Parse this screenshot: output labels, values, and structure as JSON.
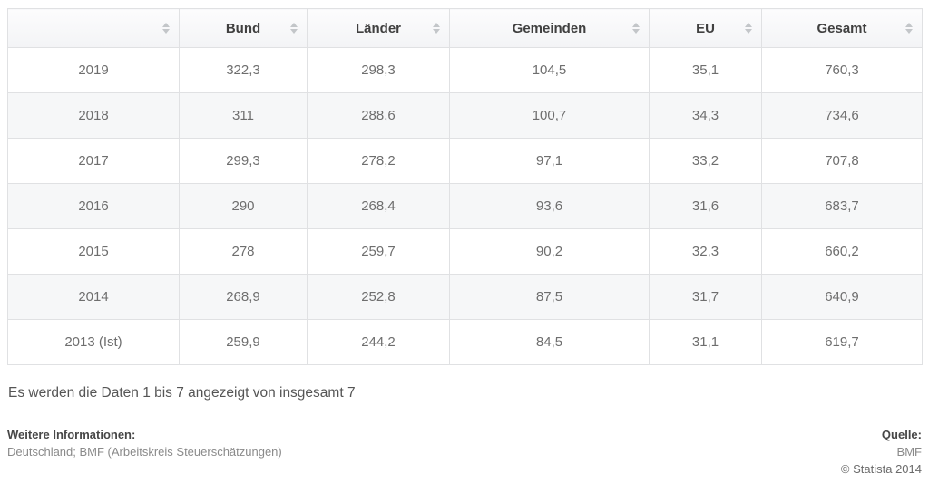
{
  "table": {
    "columns": [
      {
        "key": "year",
        "label": ""
      },
      {
        "key": "bund",
        "label": "Bund"
      },
      {
        "key": "laender",
        "label": "Länder"
      },
      {
        "key": "gemeinden",
        "label": "Gemeinden"
      },
      {
        "key": "eu",
        "label": "EU"
      },
      {
        "key": "gesamt",
        "label": "Gesamt"
      }
    ],
    "rows": [
      [
        "2019",
        "322,3",
        "298,3",
        "104,5",
        "35,1",
        "760,3"
      ],
      [
        "2018",
        "311",
        "288,6",
        "100,7",
        "34,3",
        "734,6"
      ],
      [
        "2017",
        "299,3",
        "278,2",
        "97,1",
        "33,2",
        "707,8"
      ],
      [
        "2016",
        "290",
        "268,4",
        "93,6",
        "31,6",
        "683,7"
      ],
      [
        "2015",
        "278",
        "259,7",
        "90,2",
        "32,3",
        "660,2"
      ],
      [
        "2014",
        "268,9",
        "252,8",
        "87,5",
        "31,7",
        "640,9"
      ],
      [
        "2013 (Ist)",
        "259,9",
        "244,2",
        "84,5",
        "31,1",
        "619,7"
      ]
    ]
  },
  "chart_data": {
    "type": "table",
    "categories": [
      "2019",
      "2018",
      "2017",
      "2016",
      "2015",
      "2014",
      "2013 (Ist)"
    ],
    "series": [
      {
        "name": "Bund",
        "values": [
          322.3,
          311,
          299.3,
          290,
          278,
          268.9,
          259.9
        ]
      },
      {
        "name": "Länder",
        "values": [
          298.3,
          288.6,
          278.2,
          268.4,
          259.7,
          252.8,
          244.2
        ]
      },
      {
        "name": "Gemeinden",
        "values": [
          104.5,
          100.7,
          97.1,
          93.6,
          90.2,
          87.5,
          84.5
        ]
      },
      {
        "name": "EU",
        "values": [
          35.1,
          34.3,
          33.2,
          31.6,
          32.3,
          31.7,
          31.1
        ]
      },
      {
        "name": "Gesamt",
        "values": [
          760.3,
          734.6,
          707.8,
          683.7,
          660.2,
          640.9,
          619.7
        ]
      }
    ]
  },
  "footer": {
    "pagination_info": "Es werden die Daten 1 bis 7 angezeigt von insgesamt 7",
    "more_info_label": "Weitere Informationen:",
    "more_info_text": "Deutschland; BMF (Arbeitskreis Steuerschätzungen)",
    "source_label": "Quelle:",
    "source_text": "BMF",
    "copyright": "© Statista 2014"
  },
  "icons": {
    "sort": "sort-icon"
  },
  "colors": {
    "border": "#e0e1e3",
    "header_text": "#404040",
    "cell_text": "#6e6e6e",
    "stripe_row": "#f6f7f8",
    "sort_arrow": "#c3c6c9"
  }
}
